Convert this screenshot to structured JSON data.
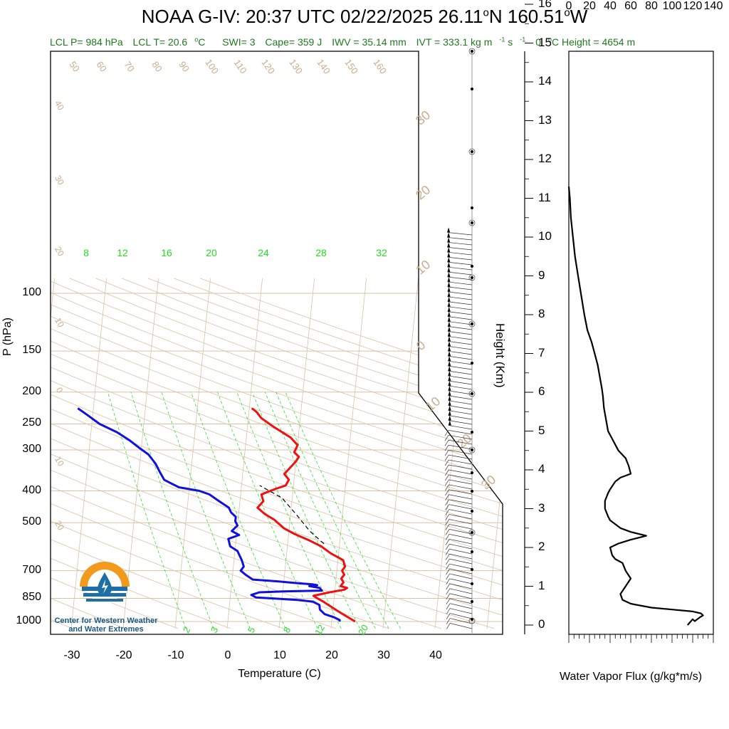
{
  "header": {
    "title_main": "NOAA G-IV: 20:37 UTC 02/22/2025  26.11",
    "title_deg1": "o",
    "title_lat_suffix": "N 160.51",
    "title_deg2": "o",
    "title_lon_suffix": "W"
  },
  "stats": {
    "lcl_p": "LCL P= 984 hPa",
    "lcl_t_pre": "LCL T= 20.6",
    "lcl_t_deg": "o",
    "lcl_t_post": "C",
    "swi": "SWI= 3",
    "cape": "Cape= 359 J",
    "iwv": "IWV = 35.14 mm",
    "ivt_pre": "IVT = 333.1 kg m",
    "ivt_exp1": "-1",
    "ivt_mid": " s",
    "ivt_exp2": "-1",
    "zero_pre": "0",
    "zero_deg": "o",
    "zero_post": "C Height = 4654 m"
  },
  "logo": {
    "line1": "Center for Western Weather",
    "line2": "and Water Extremes"
  },
  "colors": {
    "temperature": "#ee1111",
    "dewpoint": "#1111dd",
    "isotherm": "#d9c2a6",
    "mixing_ratio": "#33dd33",
    "parcel": "#000000"
  },
  "chart_data": [
    {
      "type": "line",
      "subtype": "skew-T log-P",
      "xlabel": "Temperature (C)",
      "ylabel": "P (hPa)",
      "x_ticks": [
        "-30",
        "-20",
        "-10",
        "0",
        "10",
        "20",
        "30",
        "40"
      ],
      "y_ticks": [
        "100",
        "150",
        "200",
        "250",
        "300",
        "400",
        "500",
        "700",
        "850",
        "1000"
      ],
      "right_axis_label": "Height (Km)",
      "right_axis_ticks": [
        "0",
        "1",
        "2",
        "3",
        "4",
        "5",
        "6",
        "7",
        "8",
        "9",
        "10",
        "11",
        "12",
        "13",
        "14",
        "15",
        "16"
      ],
      "mixing_ratio_labels_top": [
        "8",
        "12",
        "16",
        "20",
        "24",
        "28",
        "32"
      ],
      "mixing_ratio_labels_bottom": [
        "2",
        "3",
        "5",
        "8",
        "12",
        "20"
      ],
      "dry_adiabat_labels": [
        "50",
        "60",
        "70",
        "80",
        "90",
        "100",
        "110",
        "120",
        "130",
        "140",
        "150",
        "160"
      ],
      "left_edge_labels": [
        "40",
        "30",
        "20",
        "10",
        "0",
        "10",
        "20"
      ],
      "right_edge_labels": [
        "30",
        "20",
        "10",
        "0",
        "10",
        "20",
        "30"
      ],
      "series": [
        {
          "name": "Temperature",
          "points": [
            [
              24.5,
              1000
            ],
            [
              22.5,
              960
            ],
            [
              21,
              930
            ],
            [
              19.5,
              900
            ],
            [
              18,
              870
            ],
            [
              16.5,
              845
            ],
            [
              16,
              835
            ],
            [
              19,
              815
            ],
            [
              21.8,
              800
            ],
            [
              22.3,
              790
            ],
            [
              21,
              780
            ],
            [
              21.5,
              760
            ],
            [
              21,
              740
            ],
            [
              21.5,
              720
            ],
            [
              21,
              700
            ],
            [
              21.5,
              680
            ],
            [
              21,
              650
            ],
            [
              18.5,
              620
            ],
            [
              16.5,
              590
            ],
            [
              14,
              565
            ],
            [
              11,
              540
            ],
            [
              9,
              520
            ],
            [
              7,
              490
            ],
            [
              5,
              470
            ],
            [
              3.5,
              450
            ],
            [
              4.5,
              430
            ],
            [
              4,
              410
            ],
            [
              6.5,
              395
            ],
            [
              8.5,
              385
            ],
            [
              9,
              370
            ],
            [
              8,
              355
            ],
            [
              9,
              340
            ],
            [
              10,
              325
            ],
            [
              10.5,
              315
            ],
            [
              9.5,
              305
            ],
            [
              10,
              290
            ],
            [
              8.5,
              275
            ],
            [
              5,
              255
            ],
            [
              2.5,
              240
            ],
            [
              1.5,
              230
            ],
            [
              0.5,
              224
            ]
          ]
        },
        {
          "name": "Dewpoint",
          "points": [
            [
              21.5,
              1000
            ],
            [
              21.5,
              990
            ],
            [
              20.3,
              970
            ],
            [
              18.5,
              950
            ],
            [
              17.5,
              920
            ],
            [
              17.3,
              890
            ],
            [
              16,
              870
            ],
            [
              13,
              860
            ],
            [
              8,
              850
            ],
            [
              5,
              845
            ],
            [
              4,
              830
            ],
            [
              5.5,
              815
            ],
            [
              10,
              810
            ],
            [
              17.5,
              805
            ],
            [
              17,
              790
            ],
            [
              15,
              780
            ],
            [
              16.5,
              775
            ],
            [
              15.5,
              770
            ],
            [
              13,
              765
            ],
            [
              9,
              755
            ],
            [
              4,
              745
            ],
            [
              2.5,
              720
            ],
            [
              1.5,
              700
            ],
            [
              2,
              680
            ],
            [
              1.5,
              650
            ],
            [
              1,
              630
            ],
            [
              0.5,
              610
            ],
            [
              -1,
              590
            ],
            [
              -1.5,
              560
            ],
            [
              0.5,
              545
            ],
            [
              -1,
              530
            ],
            [
              0,
              510
            ],
            [
              -0.5,
              495
            ],
            [
              -0.5,
              480
            ],
            [
              -1.5,
              465
            ],
            [
              -2,
              450
            ],
            [
              -4,
              430
            ],
            [
              -6,
              410
            ],
            [
              -8,
              400
            ],
            [
              -10,
              395
            ],
            [
              -12,
              390
            ],
            [
              -13.5,
              380
            ],
            [
              -15,
              370
            ],
            [
              -16,
              350
            ],
            [
              -17,
              330
            ],
            [
              -18.5,
              310
            ],
            [
              -20.5,
              295
            ],
            [
              -22.5,
              280
            ],
            [
              -25,
              265
            ],
            [
              -28.5,
              250
            ],
            [
              -31,
              235
            ],
            [
              -33,
              224
            ]
          ]
        },
        {
          "name": "Parcel",
          "points": [
            [
              17,
              580
            ],
            [
              14,
              530
            ],
            [
              11,
              470
            ],
            [
              8,
              420
            ],
            [
              3.5,
              385
            ]
          ]
        }
      ]
    },
    {
      "type": "line",
      "xlabel": "Water Vapor Flux (g/kg*m/s)",
      "ylabel": "Height (Km)",
      "xlim": [
        0,
        140
      ],
      "ylim": [
        0,
        16
      ],
      "x_ticks": [
        "0",
        "20",
        "40",
        "60",
        "80",
        "100",
        "120",
        "140"
      ],
      "series": [
        {
          "name": "Water Vapor Flux",
          "points": [
            [
              115,
              0
            ],
            [
              120,
              0.15
            ],
            [
              122,
              0.1
            ],
            [
              127,
              0.2
            ],
            [
              130,
              0.25
            ],
            [
              128,
              0.3
            ],
            [
              120,
              0.35
            ],
            [
              100,
              0.4
            ],
            [
              80,
              0.45
            ],
            [
              60,
              0.55
            ],
            [
              52,
              0.65
            ],
            [
              50,
              0.8
            ],
            [
              55,
              1
            ],
            [
              60,
              1.2
            ],
            [
              55,
              1.4
            ],
            [
              52,
              1.6
            ],
            [
              45,
              1.7
            ],
            [
              42,
              1.8
            ],
            [
              40,
              2
            ],
            [
              48,
              2.1
            ],
            [
              60,
              2.2
            ],
            [
              75,
              2.3
            ],
            [
              60,
              2.4
            ],
            [
              50,
              2.5
            ],
            [
              40,
              2.7
            ],
            [
              38,
              2.8
            ],
            [
              35,
              3
            ],
            [
              35,
              3.2
            ],
            [
              38,
              3.4
            ],
            [
              40,
              3.5
            ],
            [
              45,
              3.7
            ],
            [
              50,
              3.8
            ],
            [
              60,
              3.9
            ],
            [
              58,
              4.1
            ],
            [
              55,
              4.3
            ],
            [
              48,
              4.5
            ],
            [
              42,
              4.8
            ],
            [
              38,
              5
            ],
            [
              36,
              5.3
            ],
            [
              34,
              5.6
            ],
            [
              33,
              5.9
            ],
            [
              32,
              6.1
            ],
            [
              30,
              6.4
            ],
            [
              28,
              6.7
            ],
            [
              25,
              7
            ],
            [
              22,
              7.3
            ],
            [
              18,
              7.6
            ],
            [
              15,
              8
            ],
            [
              12,
              8.5
            ],
            [
              9,
              9
            ],
            [
              6,
              9.5
            ],
            [
              4,
              10
            ],
            [
              2,
              10.5
            ],
            [
              1,
              11
            ],
            [
              0,
              11.3
            ]
          ]
        }
      ]
    }
  ]
}
